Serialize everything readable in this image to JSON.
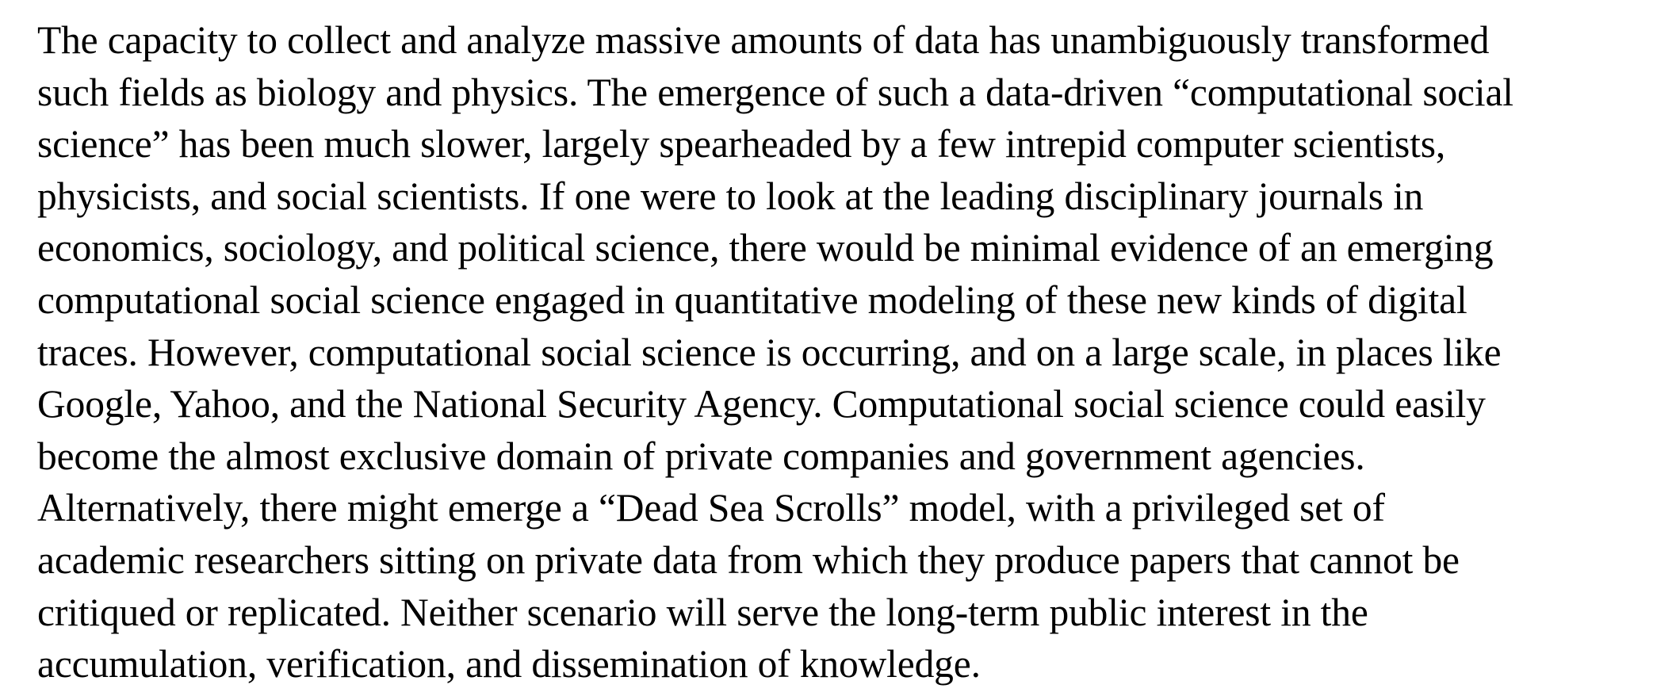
{
  "document": {
    "paragraph_lines": [
      "The capacity to collect and analyze massive amounts of data has unambiguously transformed",
      "such fields as biology and physics. The emergence of such a data-driven “computational social",
      "science” has been much slower, largely spearheaded by a few intrepid computer scientists,",
      "physicists, and social scientists. If one were to look at the leading disciplinary journals in",
      "economics, sociology, and political science, there would be minimal evidence of an emerging",
      "computational social science engaged in quantitative modeling of these new kinds of digital",
      "traces. However, computational social science is occurring, and on a large scale, in places like",
      "Google, Yahoo, and the National Security Agency. Computational social science could easily",
      "become the almost exclusive domain of private companies and government agencies.",
      "Alternatively, there might emerge a “Dead Sea Scrolls” model, with a privileged set of",
      "academic researchers sitting on private data from which they produce papers that cannot be",
      "critiqued or replicated. Neither scenario will serve the long-term public interest in the",
      "accumulation, verification, and dissemination of knowledge."
    ]
  }
}
